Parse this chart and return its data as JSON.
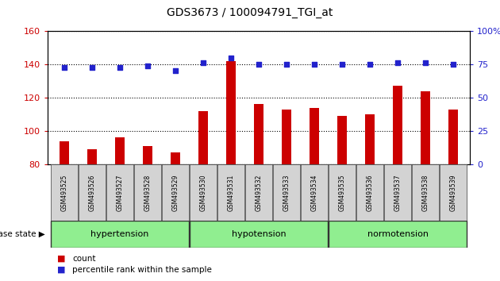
{
  "title": "GDS3673 / 100094791_TGI_at",
  "samples": [
    "GSM493525",
    "GSM493526",
    "GSM493527",
    "GSM493528",
    "GSM493529",
    "GSM493530",
    "GSM493531",
    "GSM493532",
    "GSM493533",
    "GSM493534",
    "GSM493535",
    "GSM493536",
    "GSM493537",
    "GSM493538",
    "GSM493539"
  ],
  "counts": [
    94,
    89,
    96,
    91,
    87,
    112,
    142,
    116,
    113,
    114,
    109,
    110,
    127,
    124,
    113
  ],
  "percentiles_left": [
    138,
    138,
    138,
    139,
    136,
    141,
    144,
    140,
    140,
    140,
    140,
    140,
    141,
    141,
    140
  ],
  "groups": [
    {
      "label": "hypertension",
      "start": 0,
      "end": 5
    },
    {
      "label": "hypotension",
      "start": 5,
      "end": 10
    },
    {
      "label": "normotension",
      "start": 10,
      "end": 15
    }
  ],
  "ylim_left": [
    80,
    160
  ],
  "ylim_right": [
    0,
    100
  ],
  "bar_color": "#cc0000",
  "dot_color": "#2222cc",
  "background_color": "#ffffff",
  "tick_color_left": "#cc0000",
  "tick_color_right": "#2222cc",
  "group_bg": "#90ee90",
  "sample_bg": "#d3d3d3",
  "left_yticks": [
    80,
    100,
    120,
    140,
    160
  ],
  "right_yticks": [
    0,
    25,
    50,
    75,
    100
  ],
  "right_ytick_labels": [
    "0",
    "25",
    "50",
    "75",
    "100%"
  ],
  "bar_width": 0.35
}
